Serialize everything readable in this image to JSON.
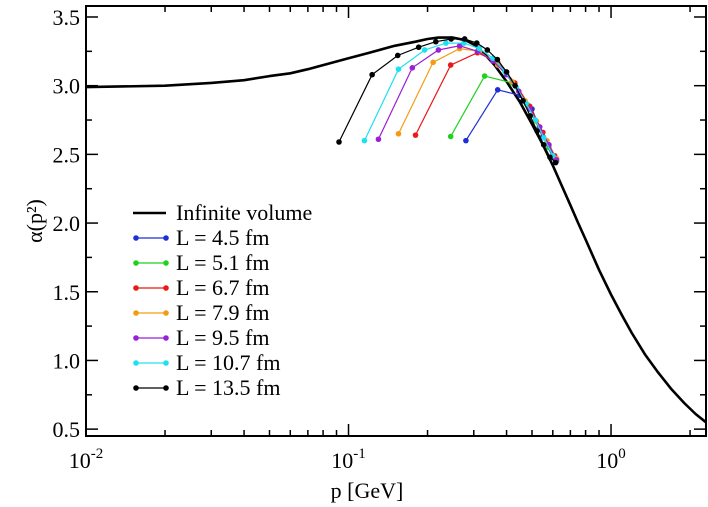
{
  "chart_data": {
    "type": "line",
    "xscale": "log",
    "xlabel": "p [GeV]",
    "ylabel": "α(p²)",
    "xlim": [
      0.01,
      2.3
    ],
    "ylim": [
      0.45,
      3.58
    ],
    "xticks": [
      {
        "value": 0.01,
        "base": "10",
        "exp": "-2"
      },
      {
        "value": 0.1,
        "base": "10",
        "exp": "-1"
      },
      {
        "value": 1.0,
        "base": "10",
        "exp": "0"
      }
    ],
    "yticks": [
      "0.5",
      "1.0",
      "1.5",
      "2.0",
      "2.5",
      "3.0",
      "3.5"
    ],
    "legend_position": "center-left",
    "series": [
      {
        "name": "Infinite volume",
        "color": "#000000",
        "style": "thick-line",
        "x": [
          0.01,
          0.02,
          0.03,
          0.04,
          0.05,
          0.06,
          0.07,
          0.08,
          0.1,
          0.12,
          0.15,
          0.18,
          0.2,
          0.22,
          0.25,
          0.28,
          0.3,
          0.33,
          0.36,
          0.4,
          0.45,
          0.5,
          0.55,
          0.6,
          0.65,
          0.7,
          0.75,
          0.8,
          0.9,
          1.0,
          1.1,
          1.2,
          1.35,
          1.5,
          1.7,
          1.9,
          2.1,
          2.3
        ],
        "y": [
          2.99,
          3.0,
          3.02,
          3.04,
          3.07,
          3.09,
          3.12,
          3.15,
          3.2,
          3.24,
          3.29,
          3.32,
          3.34,
          3.35,
          3.35,
          3.33,
          3.3,
          3.23,
          3.15,
          3.03,
          2.88,
          2.72,
          2.57,
          2.42,
          2.27,
          2.13,
          2.0,
          1.88,
          1.66,
          1.48,
          1.33,
          1.2,
          1.04,
          0.92,
          0.79,
          0.69,
          0.61,
          0.55
        ]
      },
      {
        "name": "L = 4.5 fm",
        "color": "#1f2fd6",
        "style": "line-dots",
        "x": [
          0.28,
          0.37,
          0.45,
          0.5,
          0.55,
          0.6
        ],
        "y": [
          2.6,
          2.97,
          2.93,
          2.83,
          2.63,
          2.48
        ]
      },
      {
        "name": "L = 5.1 fm",
        "color": "#1fd21f",
        "style": "line-dots",
        "x": [
          0.245,
          0.33,
          0.42,
          0.48,
          0.53,
          0.58,
          0.62
        ],
        "y": [
          2.63,
          3.07,
          3.02,
          2.86,
          2.69,
          2.55,
          2.45
        ]
      },
      {
        "name": "L = 6.7 fm",
        "color": "#ea1818",
        "style": "line-dots",
        "x": [
          0.18,
          0.245,
          0.31,
          0.37,
          0.43,
          0.49,
          0.55,
          0.61
        ],
        "y": [
          2.64,
          3.15,
          3.24,
          3.17,
          3.02,
          2.85,
          2.66,
          2.49
        ]
      },
      {
        "name": "L = 7.9 fm",
        "color": "#f39c12",
        "style": "line-dots",
        "x": [
          0.155,
          0.21,
          0.265,
          0.315,
          0.37,
          0.42,
          0.47,
          0.52,
          0.57,
          0.62
        ],
        "y": [
          2.65,
          3.17,
          3.27,
          3.25,
          3.15,
          3.03,
          2.89,
          2.74,
          2.6,
          2.47
        ]
      },
      {
        "name": "L = 9.5 fm",
        "color": "#9b1fd6",
        "style": "line-dots",
        "x": [
          0.13,
          0.175,
          0.22,
          0.265,
          0.31,
          0.355,
          0.4,
          0.445,
          0.49,
          0.535,
          0.58,
          0.62
        ],
        "y": [
          2.61,
          3.13,
          3.26,
          3.29,
          3.25,
          3.18,
          3.08,
          2.96,
          2.83,
          2.7,
          2.57,
          2.46
        ]
      },
      {
        "name": "L = 10.7 fm",
        "color": "#1fe0f0",
        "style": "line-dots",
        "x": [
          0.115,
          0.155,
          0.195,
          0.235,
          0.275,
          0.315,
          0.355,
          0.395,
          0.435,
          0.475,
          0.515,
          0.555,
          0.6
        ],
        "y": [
          2.6,
          3.12,
          3.26,
          3.31,
          3.31,
          3.27,
          3.2,
          3.1,
          2.99,
          2.87,
          2.75,
          2.62,
          2.49
        ]
      },
      {
        "name": "L = 13.5 fm",
        "color": "#000000",
        "style": "line-dots",
        "x": [
          0.092,
          0.123,
          0.154,
          0.185,
          0.215,
          0.246,
          0.277,
          0.308,
          0.338,
          0.369,
          0.4,
          0.431,
          0.462,
          0.492,
          0.523,
          0.554,
          0.585,
          0.615
        ],
        "y": [
          2.59,
          3.08,
          3.22,
          3.28,
          3.32,
          3.34,
          3.34,
          3.31,
          3.26,
          3.19,
          3.1,
          3.0,
          2.89,
          2.78,
          2.67,
          2.57,
          2.48,
          2.44
        ]
      }
    ]
  }
}
